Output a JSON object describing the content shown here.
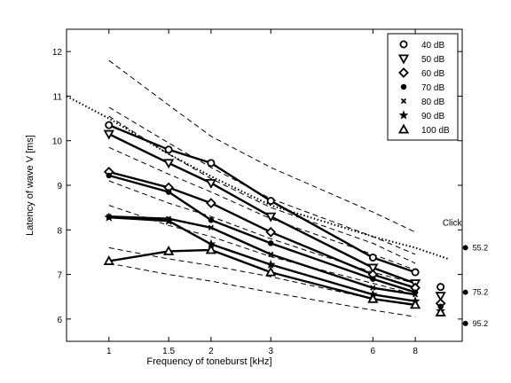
{
  "chart_data": {
    "type": "line",
    "xlabel": "Frequency of toneburst [kHz]",
    "ylabel": "Latency of wave V [ms]",
    "x_scale": "log",
    "xlim": [
      0.75,
      11
    ],
    "ylim": [
      5.5,
      12.5
    ],
    "x_ticks": [
      1,
      1.5,
      2,
      3,
      6,
      8
    ],
    "x_tick_labels": [
      "1",
      "1.5",
      "2",
      "3",
      "6",
      "8"
    ],
    "y_ticks": [
      6,
      7,
      8,
      9,
      10,
      11,
      12
    ],
    "y_tick_labels": [
      "6",
      "7",
      "8",
      "9",
      "10",
      "11",
      "12"
    ],
    "grid": false,
    "legend_position": "top-right",
    "x": [
      1,
      1.5,
      2,
      3,
      6,
      8
    ],
    "series": [
      {
        "name": "40 dB",
        "marker": "circle-open",
        "values": [
          10.35,
          9.8,
          9.5,
          8.65,
          7.38,
          7.05
        ]
      },
      {
        "name": "50 dB",
        "marker": "triangle-down",
        "values": [
          10.15,
          9.5,
          9.05,
          8.3,
          7.15,
          6.8
        ]
      },
      {
        "name": "60 dB",
        "marker": "diamond",
        "values": [
          9.3,
          8.95,
          8.6,
          7.95,
          7.0,
          6.7
        ]
      },
      {
        "name": "70 dB",
        "marker": "dot",
        "values": [
          9.22,
          8.85,
          8.22,
          7.7,
          6.9,
          6.6
        ]
      },
      {
        "name": "80 dB",
        "marker": "x",
        "values": [
          8.3,
          8.25,
          8.05,
          7.45,
          6.7,
          6.55
        ]
      },
      {
        "name": "90 dB",
        "marker": "star",
        "values": [
          8.28,
          8.2,
          7.68,
          7.22,
          6.55,
          6.4
        ]
      },
      {
        "name": "100 dB",
        "marker": "triangle-up",
        "values": [
          7.3,
          7.52,
          7.55,
          7.05,
          6.45,
          6.32
        ]
      }
    ],
    "dashed_curves": [
      {
        "x": [
          1,
          1.5,
          2,
          3,
          6,
          8
        ],
        "values": [
          11.8,
          10.8,
          10.1,
          9.4,
          8.4,
          7.95
        ]
      },
      {
        "x": [
          1,
          1.5,
          2,
          3,
          6,
          8
        ],
        "values": [
          10.75,
          9.95,
          9.4,
          8.7,
          7.85,
          7.45
        ]
      },
      {
        "x": [
          1,
          1.5,
          2,
          3,
          6,
          8
        ],
        "values": [
          10.55,
          9.7,
          9.15,
          8.5,
          7.7,
          7.25
        ]
      },
      {
        "x": [
          1,
          1.5,
          2,
          3,
          6,
          8
        ],
        "values": [
          9.85,
          9.25,
          8.85,
          8.25,
          7.45,
          7.1
        ]
      },
      {
        "x": [
          1,
          1.5,
          2,
          3,
          6,
          8
        ],
        "values": [
          9.1,
          8.6,
          8.3,
          7.8,
          7.05,
          6.8
        ]
      },
      {
        "x": [
          1,
          1.5,
          2,
          3,
          6,
          8
        ],
        "values": [
          8.55,
          8.1,
          7.85,
          7.4,
          6.8,
          6.55
        ]
      },
      {
        "x": [
          1,
          1.5,
          2,
          3,
          6,
          8
        ],
        "values": [
          7.6,
          7.35,
          7.2,
          6.95,
          6.45,
          6.3
        ]
      },
      {
        "x": [
          1,
          1.5,
          2,
          3,
          6,
          8
        ],
        "values": [
          7.25,
          7.0,
          6.85,
          6.6,
          6.2,
          6.05
        ]
      }
    ],
    "dotted_curve": {
      "x": [
        0.75,
        1,
        1.5,
        2,
        3,
        6,
        8,
        10
      ],
      "values": [
        11.0,
        10.5,
        9.7,
        9.2,
        8.55,
        7.85,
        7.6,
        7.35
      ]
    },
    "click": {
      "label": "Click",
      "x": 9.5,
      "values": [
        6.72,
        6.52,
        6.35,
        6.28,
        6.22,
        6.18,
        6.15
      ],
      "markers": [
        "circle-open",
        "triangle-down",
        "diamond",
        "dot",
        "x",
        "star",
        "triangle-up"
      ]
    },
    "click_reference": [
      {
        "y": 7.6,
        "label": "55.2"
      },
      {
        "y": 6.6,
        "label": "75.2"
      },
      {
        "y": 5.9,
        "label": "95.2"
      }
    ]
  }
}
